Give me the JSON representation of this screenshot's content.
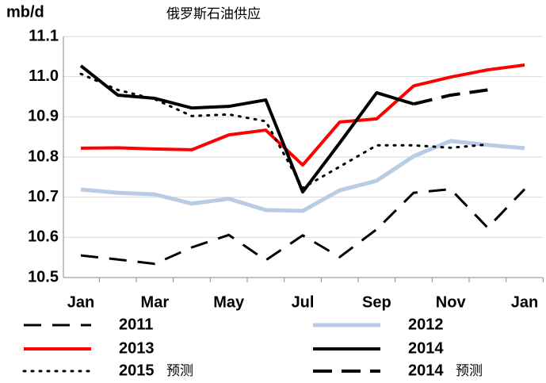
{
  "chart_data": {
    "type": "line",
    "title": "俄罗斯石油供应",
    "y_label": "mb/d",
    "categories": [
      "Jan",
      null,
      "Mar",
      null,
      "May",
      null,
      "Jul",
      null,
      "Sep",
      null,
      "Nov",
      null,
      "Jan"
    ],
    "ylim": [
      10.5,
      11.1
    ],
    "yticks": [
      10.5,
      10.6,
      10.7,
      10.8,
      10.9,
      {
        "value": 11,
        "label": "11.0"
      },
      11.1
    ],
    "grid": true,
    "series": [
      {
        "name": "2011",
        "color": "#000000",
        "style": "dashed",
        "values": [
          10.555,
          10.545,
          10.534,
          10.575,
          10.606,
          10.543,
          10.605,
          10.551,
          10.62,
          10.711,
          10.72,
          10.624,
          10.72
        ]
      },
      {
        "name": "2012",
        "color": "#b8cce4",
        "style": "solid",
        "values": [
          10.719,
          10.711,
          10.707,
          10.684,
          10.696,
          10.668,
          10.666,
          10.717,
          10.741,
          10.802,
          10.84,
          10.83,
          10.822
        ]
      },
      {
        "name": "2013",
        "color": "#ff0000",
        "style": "solid",
        "values": [
          10.822,
          10.823,
          10.82,
          10.818,
          10.855,
          10.867,
          10.78,
          10.887,
          10.895,
          10.977,
          10.999,
          11.017,
          11.029
        ]
      },
      {
        "name": "2014",
        "color": "#000000",
        "style": "solid",
        "values": [
          11.027,
          10.954,
          10.946,
          10.922,
          10.926,
          10.942,
          10.713,
          10.835,
          10.96,
          10.932,
          null,
          null,
          null
        ]
      },
      {
        "name": "2015",
        "legend_note": "预测",
        "color": "#000000",
        "style": "dotted",
        "values": [
          11.007,
          10.967,
          10.944,
          10.902,
          10.906,
          10.889,
          10.723,
          10.776,
          10.829,
          10.829,
          10.823,
          10.831,
          null
        ]
      },
      {
        "name": "2014",
        "legend_note": "预测",
        "color": "#000000",
        "style": "dashed-heavy",
        "values": [
          null,
          null,
          null,
          null,
          null,
          null,
          null,
          null,
          null,
          10.932,
          10.954,
          10.967,
          null
        ]
      }
    ]
  }
}
